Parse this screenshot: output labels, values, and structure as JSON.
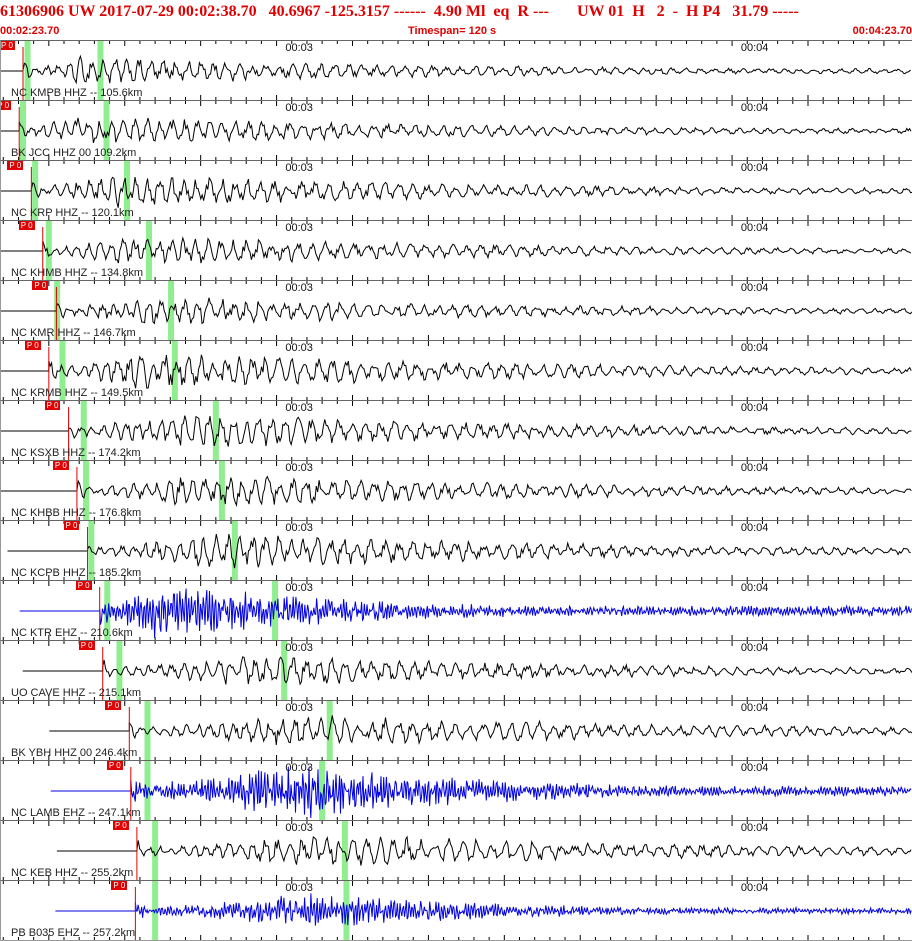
{
  "header": {
    "title": "61306906 UW 2017-07-29 00:02:38.70   40.6967 -125.3157 ------  4.90 Ml  eq  R ---       UW 01  H   2  -  H P4   31.79 -----",
    "start_time": "00:02:23.70",
    "timespan": "Timespan= 120 s",
    "end_time": "00:04:23.70"
  },
  "minute_labels": [
    "00:03",
    "00:04"
  ],
  "pick_label": "P 0",
  "colors": {
    "header_red": "#e00000",
    "trace_black": "#000000",
    "trace_blue": "#0000e0",
    "pick_red": "#e00000",
    "phase_green": "#90ee90"
  },
  "stations": [
    {
      "label": "NC KMPB HHZ -- 105.6km",
      "pick_s": 26.6,
      "color": "black",
      "amp": 0.55,
      "peak_s": 34,
      "green": [
        27.2,
        36.8
      ]
    },
    {
      "label": "BK JCC HHZ 00 109.2km",
      "pick_s": 26.1,
      "color": "black",
      "amp": 0.6,
      "peak_s": 34,
      "green": [
        26.6,
        37.6
      ]
    },
    {
      "label": "NC KRP HHZ -- 120.1km",
      "pick_s": 27.7,
      "color": "black",
      "amp": 0.65,
      "peak_s": 38,
      "green": [
        28.2,
        40.3
      ]
    },
    {
      "label": "NC KHMB HHZ -- 134.8km",
      "pick_s": 29.2,
      "color": "black",
      "amp": 0.6,
      "peak_s": 40,
      "green": [
        30.0,
        43.2
      ]
    },
    {
      "label": "NC KMR HHZ -- 146.7km",
      "pick_s": 31.0,
      "color": "black",
      "amp": 0.6,
      "peak_s": 42,
      "green": [
        31.1,
        46.1
      ]
    },
    {
      "label": "NC KRMB HHZ -- 149.5km",
      "pick_s": 30.0,
      "color": "black",
      "amp": 0.75,
      "peak_s": 43,
      "green": [
        31.8,
        46.6
      ]
    },
    {
      "label": "NC KSXB HHZ -- 174.2km",
      "pick_s": 32.6,
      "color": "black",
      "amp": 0.7,
      "peak_s": 47,
      "green": [
        34.6,
        52.0
      ]
    },
    {
      "label": "NC KHBB HHZ -- 176.8km",
      "pick_s": 33.7,
      "color": "black",
      "amp": 0.65,
      "peak_s": 49,
      "green": [
        34.9,
        52.8
      ]
    },
    {
      "label": "NC KCPB HHZ -- 185.2km",
      "pick_s": 35.1,
      "color": "black",
      "amp": 0.7,
      "peak_s": 52,
      "green": [
        35.6,
        54.5
      ]
    },
    {
      "label": "NC KTR EHZ -- 210.6km",
      "pick_s": 36.7,
      "color": "blue",
      "amp": 0.95,
      "peak_s": 44,
      "green": [
        37.7,
        59.8
      ]
    },
    {
      "label": "UO CAVE HHZ -- 215.1km",
      "pick_s": 37.1,
      "color": "black",
      "amp": 0.6,
      "peak_s": 55,
      "green": [
        39.3,
        61.0
      ]
    },
    {
      "label": "BK YBH HHZ 00 246.4km",
      "pick_s": 40.6,
      "color": "black",
      "amp": 0.65,
      "peak_s": 63,
      "green": [
        43.0,
        67.0
      ]
    },
    {
      "label": "NC LAMB EHZ -- 247.1km",
      "pick_s": 40.8,
      "color": "blue",
      "amp": 0.95,
      "peak_s": 63,
      "green": [
        43.0,
        66.0
      ]
    },
    {
      "label": "NC KEB HHZ -- 255.2km",
      "pick_s": 41.6,
      "color": "black",
      "amp": 0.65,
      "peak_s": 66,
      "green": [
        44.0,
        69.0
      ]
    },
    {
      "label": "PB B035 EHZ -- 257.2km",
      "pick_s": 41.4,
      "color": "blue",
      "amp": 0.6,
      "peak_s": 64,
      "green": [
        44.0,
        69.2
      ]
    }
  ]
}
